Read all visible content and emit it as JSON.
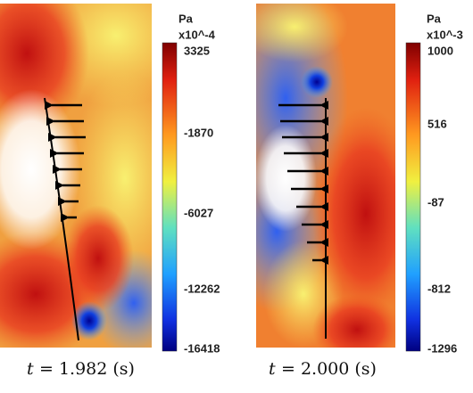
{
  "panels": [
    {
      "unit": "Pa",
      "scale": "x10^-4",
      "colorbar_labels": [
        "3325",
        "-1870",
        "-6027",
        "-12262",
        "-16418"
      ],
      "caption_var": "t",
      "caption_value": "= 1.982 (s)"
    },
    {
      "unit": "Pa",
      "scale": "x10^-3",
      "colorbar_labels": [
        "1000",
        "516",
        "-87",
        "-812",
        "-1296"
      ],
      "caption_var": "t",
      "caption_value": "= 2.000 (s)"
    }
  ]
}
